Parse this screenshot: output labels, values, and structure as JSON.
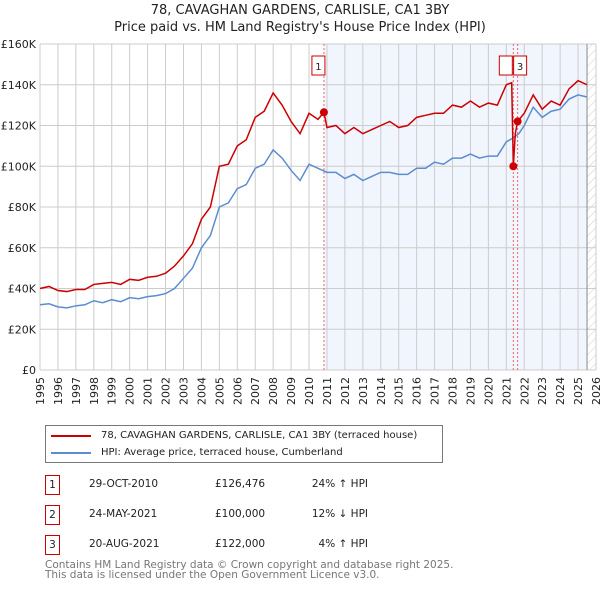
{
  "chart_data": {
    "type": "line",
    "title": "78, CAVAGHAN GARDENS, CARLISLE, CA1 3BY",
    "subtitle": "Price paid vs. HM Land Registry's House Price Index (HPI)",
    "xlim": [
      1995,
      2026
    ],
    "ylim": [
      0,
      160000
    ],
    "x_ticks": [
      "1995",
      "1996",
      "1997",
      "1998",
      "1999",
      "2000",
      "2001",
      "2002",
      "2003",
      "2004",
      "2005",
      "2006",
      "2007",
      "2008",
      "2009",
      "2010",
      "2011",
      "2012",
      "2013",
      "2014",
      "2015",
      "2016",
      "2017",
      "2018",
      "2019",
      "2020",
      "2021",
      "2022",
      "2023",
      "2024",
      "2025",
      "2026"
    ],
    "y_ticks": [
      {
        "v": 0,
        "label": "£0"
      },
      {
        "v": 20000,
        "label": "£20K"
      },
      {
        "v": 40000,
        "label": "£40K"
      },
      {
        "v": 60000,
        "label": "£60K"
      },
      {
        "v": 80000,
        "label": "£80K"
      },
      {
        "v": 100000,
        "label": "£100K"
      },
      {
        "v": 120000,
        "label": "£120K"
      },
      {
        "v": 140000,
        "label": "£140K"
      },
      {
        "v": 160000,
        "label": "£160K"
      }
    ],
    "shaded_from": 2010.83,
    "hatched_from": 2025.5,
    "series": [
      {
        "name": "78, CAVAGHAN GARDENS, CARLISLE, CA1 3BY (terraced house)",
        "color": "#cc0000",
        "x": [
          1995,
          1995.5,
          1996,
          1996.5,
          1997,
          1997.5,
          1998,
          1998.5,
          1999,
          1999.5,
          2000,
          2000.5,
          2001,
          2001.5,
          2002,
          2002.5,
          2003,
          2003.5,
          2004,
          2004.5,
          2005,
          2005.5,
          2006,
          2006.5,
          2007,
          2007.5,
          2008,
          2008.5,
          2009,
          2009.5,
          2010,
          2010.5,
          2010.83,
          2011,
          2011.5,
          2012,
          2012.5,
          2013,
          2013.5,
          2014,
          2014.5,
          2015,
          2015.5,
          2016,
          2016.5,
          2017,
          2017.5,
          2018,
          2018.5,
          2019,
          2019.5,
          2020,
          2020.5,
          2021,
          2021.3,
          2021.39,
          2021.5,
          2021.63,
          2022,
          2022.5,
          2023,
          2023.5,
          2024,
          2024.5,
          2025,
          2025.5
        ],
        "y": [
          40000,
          41000,
          39000,
          38500,
          39500,
          39500,
          42000,
          42500,
          43000,
          42000,
          44500,
          44000,
          45500,
          46000,
          47500,
          51000,
          56000,
          62000,
          74000,
          80000,
          100000,
          101000,
          110000,
          113000,
          124000,
          127000,
          136000,
          130000,
          122000,
          116000,
          126000,
          123000,
          126476,
          119000,
          120000,
          116000,
          119000,
          116000,
          118000,
          120000,
          122000,
          119000,
          120000,
          124000,
          125000,
          126000,
          126000,
          130000,
          129000,
          132000,
          129000,
          131000,
          130000,
          140000,
          141000,
          100000,
          116000,
          122000,
          126000,
          135000,
          128000,
          132000,
          130000,
          138000,
          142000,
          140000
        ]
      },
      {
        "name": "HPI: Average price, terraced house, Cumberland",
        "color": "#5b8dd0",
        "x": [
          1995,
          1995.5,
          1996,
          1996.5,
          1997,
          1997.5,
          1998,
          1998.5,
          1999,
          1999.5,
          2000,
          2000.5,
          2001,
          2001.5,
          2002,
          2002.5,
          2003,
          2003.5,
          2004,
          2004.5,
          2005,
          2005.5,
          2006,
          2006.5,
          2007,
          2007.5,
          2008,
          2008.5,
          2009,
          2009.5,
          2010,
          2010.5,
          2011,
          2011.5,
          2012,
          2012.5,
          2013,
          2013.5,
          2014,
          2014.5,
          2015,
          2015.5,
          2016,
          2016.5,
          2017,
          2017.5,
          2018,
          2018.5,
          2019,
          2019.5,
          2020,
          2020.5,
          2021,
          2021.4,
          2021.7,
          2022,
          2022.5,
          2023,
          2023.5,
          2024,
          2024.5,
          2025,
          2025.5
        ],
        "y": [
          32000,
          32500,
          31000,
          30500,
          31500,
          32000,
          34000,
          33000,
          34500,
          33500,
          35500,
          35000,
          36000,
          36500,
          37500,
          40000,
          45000,
          50000,
          60000,
          66000,
          80000,
          82000,
          89000,
          91000,
          99000,
          101000,
          108000,
          104000,
          98000,
          93000,
          101000,
          99000,
          97000,
          97000,
          94000,
          96000,
          93000,
          95000,
          97000,
          97000,
          96000,
          96000,
          99000,
          99000,
          102000,
          101000,
          104000,
          104000,
          106000,
          104000,
          105000,
          105000,
          112000,
          114000,
          116000,
          120000,
          129000,
          124000,
          127000,
          128000,
          133000,
          135000,
          134000
        ]
      }
    ],
    "transactions": [
      {
        "id": "1",
        "date": "29-OCT-2010",
        "x": 2010.83,
        "price": 126476,
        "price_label": "£126,476",
        "hpi": "24% ↑ HPI"
      },
      {
        "id": "2",
        "date": "24-MAY-2021",
        "x": 2021.39,
        "price": 100000,
        "price_label": "£100,000",
        "hpi": "12% ↓ HPI"
      },
      {
        "id": "3",
        "date": "20-AUG-2021",
        "x": 2021.63,
        "price": 122000,
        "price_label": "£122,000",
        "hpi": "4% ↑ HPI"
      }
    ]
  },
  "footer": {
    "line1": "Contains HM Land Registry data © Crown copyright and database right 2025.",
    "line2": "This data is licensed under the Open Government Licence v3.0."
  }
}
